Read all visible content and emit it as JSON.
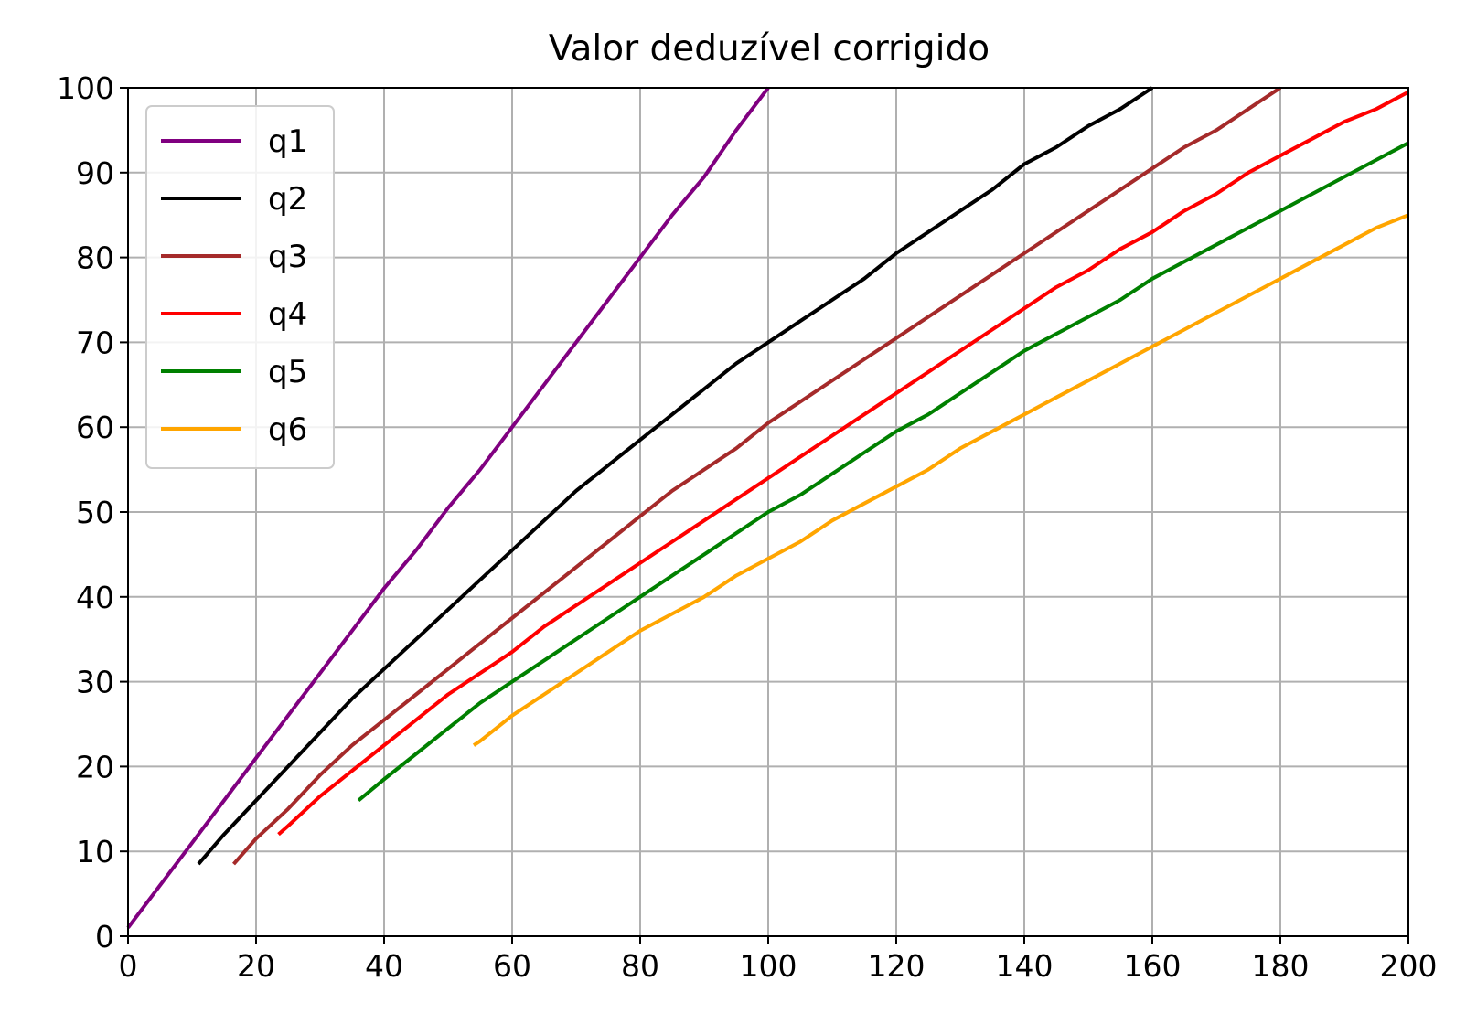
{
  "chart_data": {
    "type": "line",
    "title": "Valor deduzível corrigido",
    "xlabel": "",
    "ylabel": "",
    "xlim": [
      0,
      200
    ],
    "ylim": [
      0,
      100
    ],
    "xticks": [
      0,
      20,
      40,
      60,
      80,
      100,
      120,
      140,
      160,
      180,
      200
    ],
    "yticks": [
      0,
      10,
      20,
      30,
      40,
      50,
      60,
      70,
      80,
      90,
      100
    ],
    "grid": true,
    "legend_position": "top-left",
    "series": [
      {
        "name": "q1",
        "color": "#800080",
        "x": [
          0,
          5,
          10,
          15,
          20,
          25,
          30,
          35,
          40,
          45,
          50,
          55,
          60,
          65,
          70,
          75,
          80,
          85,
          90,
          95,
          100
        ],
        "y": [
          1,
          6,
          11,
          16,
          21,
          26,
          31,
          36,
          41,
          45.5,
          50.5,
          55,
          60,
          65,
          70,
          75,
          80,
          85,
          89.5,
          95,
          100
        ]
      },
      {
        "name": "q2",
        "color": "#000000",
        "x": [
          11,
          15,
          20,
          25,
          30,
          35,
          40,
          45,
          50,
          55,
          60,
          65,
          70,
          75,
          80,
          85,
          90,
          95,
          100,
          105,
          110,
          115,
          120,
          125,
          130,
          135,
          140,
          145,
          150,
          155,
          160
        ],
        "y": [
          8.5,
          12,
          16,
          20,
          24,
          28,
          31.5,
          35,
          38.5,
          42,
          45.5,
          49,
          52.5,
          55.5,
          58.5,
          61.5,
          64.5,
          67.5,
          70,
          72.5,
          75,
          77.5,
          80.5,
          83,
          85.5,
          88,
          91,
          93,
          95.5,
          97.5,
          100
        ]
      },
      {
        "name": "q3",
        "color": "#a52a2a",
        "x": [
          16.5,
          20,
          25,
          30,
          35,
          40,
          45,
          50,
          55,
          60,
          65,
          70,
          75,
          80,
          85,
          90,
          95,
          100,
          105,
          110,
          115,
          120,
          125,
          130,
          135,
          140,
          145,
          150,
          155,
          160,
          165,
          170,
          175,
          180
        ],
        "y": [
          8.5,
          11.5,
          15,
          19,
          22.5,
          25.5,
          28.5,
          31.5,
          34.5,
          37.5,
          40.5,
          43.5,
          46.5,
          49.5,
          52.5,
          55,
          57.5,
          60.5,
          63,
          65.5,
          68,
          70.5,
          73,
          75.5,
          78,
          80.5,
          83,
          85.5,
          88,
          90.5,
          93,
          95,
          97.5,
          100
        ]
      },
      {
        "name": "q4",
        "color": "#ff0000",
        "x": [
          23.5,
          25,
          30,
          35,
          40,
          45,
          50,
          55,
          60,
          65,
          70,
          75,
          80,
          85,
          90,
          95,
          100,
          105,
          110,
          115,
          120,
          125,
          130,
          135,
          140,
          145,
          150,
          155,
          160,
          165,
          170,
          175,
          180,
          185,
          190,
          195,
          200
        ],
        "y": [
          12,
          13,
          16.5,
          19.5,
          22.5,
          25.5,
          28.5,
          31,
          33.5,
          36.5,
          39,
          41.5,
          44,
          46.5,
          49,
          51.5,
          54,
          56.5,
          59,
          61.5,
          64,
          66.5,
          69,
          71.5,
          74,
          76.5,
          78.5,
          81,
          83,
          85.5,
          87.5,
          90,
          92,
          94,
          96,
          97.5,
          99.5
        ]
      },
      {
        "name": "q5",
        "color": "#008000",
        "x": [
          36,
          40,
          45,
          50,
          55,
          60,
          65,
          70,
          75,
          80,
          85,
          90,
          95,
          100,
          105,
          110,
          115,
          120,
          125,
          130,
          135,
          140,
          145,
          150,
          155,
          160,
          165,
          170,
          175,
          180,
          185,
          190,
          195,
          200
        ],
        "y": [
          16,
          18.5,
          21.5,
          24.5,
          27.5,
          30,
          32.5,
          35,
          37.5,
          40,
          42.5,
          45,
          47.5,
          50,
          52,
          54.5,
          57,
          59.5,
          61.5,
          64,
          66.5,
          69,
          71,
          73,
          75,
          77.5,
          79.5,
          81.5,
          83.5,
          85.5,
          87.5,
          89.5,
          91.5,
          93.5
        ]
      },
      {
        "name": "q6",
        "color": "#ffa500",
        "x": [
          54,
          55,
          60,
          65,
          70,
          75,
          80,
          85,
          90,
          95,
          100,
          105,
          110,
          115,
          120,
          125,
          130,
          135,
          140,
          145,
          150,
          155,
          160,
          165,
          170,
          175,
          180,
          185,
          190,
          195,
          200
        ],
        "y": [
          22.5,
          23,
          26,
          28.5,
          31,
          33.5,
          36,
          38,
          40,
          42.5,
          44.5,
          46.5,
          49,
          51,
          53,
          55,
          57.5,
          59.5,
          61.5,
          63.5,
          65.5,
          67.5,
          69.5,
          71.5,
          73.5,
          75.5,
          77.5,
          79.5,
          81.5,
          83.5,
          85
        ]
      }
    ]
  }
}
